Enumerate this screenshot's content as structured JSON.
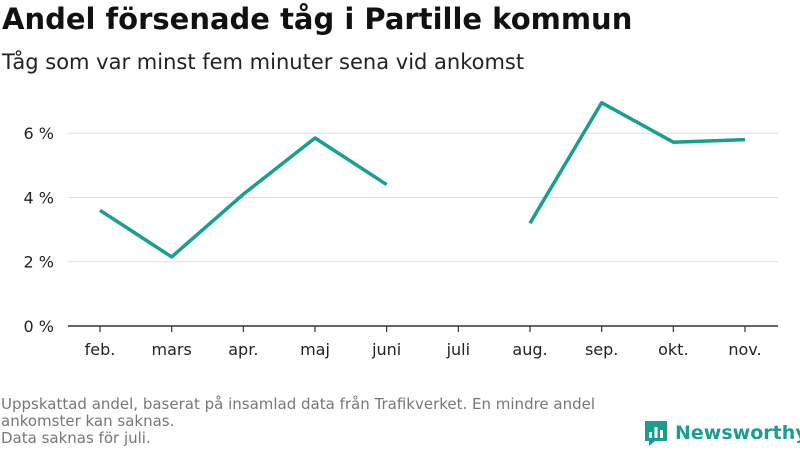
{
  "header": {
    "title": "Andel försenade tåg i Partille kommun",
    "subtitle": "Tåg som var minst fem minuter sena vid ankomst"
  },
  "footer": {
    "note_1": "Uppskattad andel, baserat på insamlad data från Trafikverket. En mindre andel ankomster kan saknas.",
    "note_2": "Data saknas för juli."
  },
  "brand": {
    "name": "Newsworthy",
    "icon": "bar-chart-logo-icon",
    "color": "#1a9e8f"
  },
  "chart_data": {
    "type": "line",
    "categories": [
      "feb.",
      "mars",
      "apr.",
      "maj",
      "juni",
      "juli",
      "aug.",
      "sep.",
      "okt.",
      "nov."
    ],
    "series": [
      {
        "values": [
          3.6,
          2.15,
          4.1,
          5.85,
          4.4,
          null,
          3.2,
          6.95,
          5.72,
          5.8
        ],
        "color": "#1a9e8f"
      }
    ],
    "yticks": [
      0,
      2,
      4,
      6
    ],
    "ytick_labels": [
      "0 %",
      "2 %",
      "4 %",
      "6 %"
    ],
    "ylim": [
      0,
      7.5
    ],
    "grid": true,
    "title": "Andel försenade tåg i Partille kommun",
    "subtitle": "Tåg som var minst fem minuter sena vid ankomst",
    "xlabel": "",
    "ylabel": ""
  }
}
